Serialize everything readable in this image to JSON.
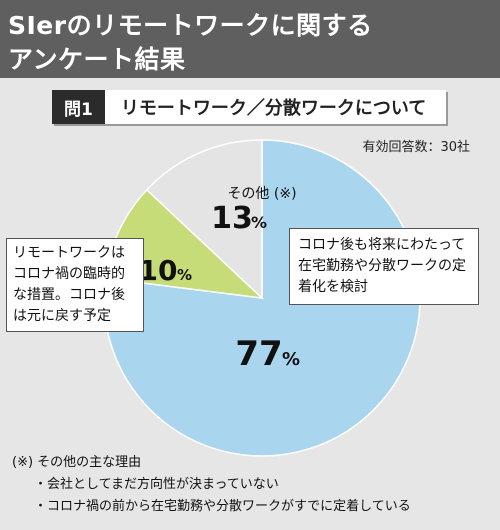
{
  "header": {
    "title_line1": "SIerのリモートワークに関する",
    "title_line2": "アンケート結果"
  },
  "question": {
    "label": "問1",
    "text": "リモートワーク／分散ワークについて"
  },
  "respondents": "有効回答数：30社",
  "chart_data": {
    "type": "pie",
    "slices": [
      {
        "name": "コロナ後も将来にわたって在宅勤務や分散ワークの定着化を検討",
        "value": 77,
        "color": "#a9d6ee"
      },
      {
        "name": "リモートワークはコロナ禍の臨時的な措置。コロナ後は元に戻す予定",
        "value": 10,
        "color": "#c6dc78"
      },
      {
        "name": "その他 (※)",
        "value": 13,
        "color": "#e4e4e4"
      }
    ],
    "labels": {
      "big": "77",
      "small": "10",
      "other": "13",
      "unit": "%",
      "other_name": "その他 (※)"
    }
  },
  "callouts": {
    "left": "リモートワークはコロナ禍の臨時的な措置。コロナ後は元に戻す予定",
    "right": "コロナ後も将来にわたって在宅勤務や分散ワークの定着化を検討"
  },
  "notes": {
    "heading": "(※) その他の主な理由",
    "items": [
      "・会社としてまだ方向性が決まっていない",
      "・コロナ禍の前から在宅勤務や分散ワークがすでに定着している"
    ]
  }
}
